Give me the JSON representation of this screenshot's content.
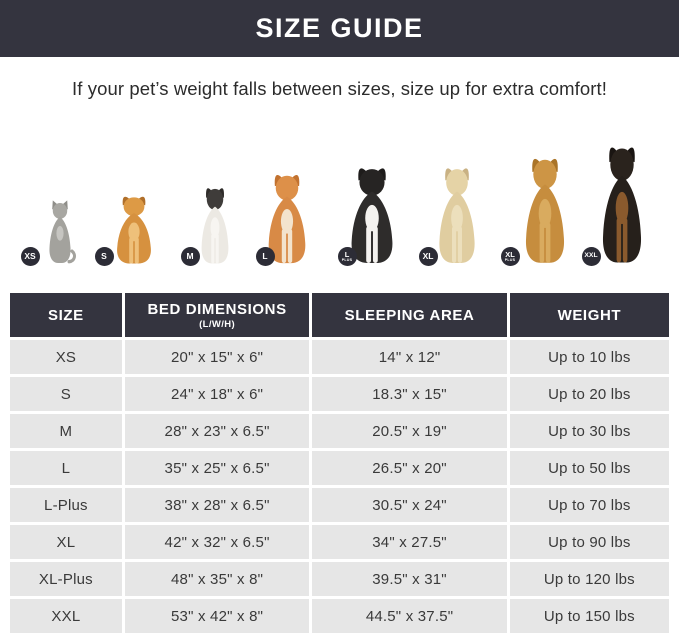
{
  "header": {
    "title": "SIZE GUIDE"
  },
  "subtitle": "If your pet’s weight falls between sizes, size up for extra comfort!",
  "colors": {
    "banner_bg": "#34343f",
    "table_header_bg": "#34343f",
    "row_bg": "#e6e6e6",
    "badge_bg": "#2c2c36",
    "text": "#3a3a3a"
  },
  "animals": [
    {
      "badge": "XS",
      "badge_sub": "",
      "breed": "cat",
      "colors": {
        "body": "#a3a29d",
        "head": "#a8a7a2",
        "ears": "#8f8e89",
        "accent": "#c6c5c1"
      }
    },
    {
      "badge": "S",
      "badge_sub": "",
      "breed": "pomeranian",
      "colors": {
        "body": "#d6913f",
        "head": "#dd9a45",
        "ears": "#b06f2a",
        "accent": "#eec07a"
      }
    },
    {
      "badge": "M",
      "badge_sub": "",
      "breed": "french-bulldog",
      "colors": {
        "body": "#ece9e3",
        "head": "#3f3c3a",
        "ears": "#2f2c2a",
        "accent": "#f7f5f1"
      }
    },
    {
      "badge": "L",
      "badge_sub": "",
      "breed": "shiba-inu",
      "colors": {
        "body": "#d88a46",
        "head": "#dd9049",
        "ears": "#c2722f",
        "accent": "#f3e3cd"
      }
    },
    {
      "badge": "L",
      "badge_sub": "PLUS",
      "breed": "border-collie",
      "colors": {
        "body": "#2e2c2b",
        "head": "#262423",
        "ears": "#1e1c1b",
        "accent": "#f4f2ef"
      }
    },
    {
      "badge": "XL",
      "badge_sub": "",
      "breed": "labrador",
      "colors": {
        "body": "#e0cda0",
        "head": "#e5d3a6",
        "ears": "#c9b183",
        "accent": "#ecdfbc"
      }
    },
    {
      "badge": "XL",
      "badge_sub": "PLUS",
      "breed": "golden-retriever",
      "colors": {
        "body": "#c68d3e",
        "head": "#cd9545",
        "ears": "#aa7428",
        "accent": "#d9ab5f"
      }
    },
    {
      "badge": "XXL",
      "badge_sub": "",
      "breed": "doberman",
      "colors": {
        "body": "#26201b",
        "head": "#2a231d",
        "ears": "#1a1512",
        "accent": "#8a5a2d"
      }
    }
  ],
  "table": {
    "headers": [
      {
        "label": "SIZE",
        "sublabel": ""
      },
      {
        "label": "BED DIMENSIONS",
        "sublabel": "(L/W/H)"
      },
      {
        "label": "SLEEPING AREA",
        "sublabel": ""
      },
      {
        "label": "WEIGHT",
        "sublabel": ""
      }
    ],
    "rows": [
      [
        "XS",
        "20\" x 15\" x 6\"",
        "14\" x 12\"",
        "Up to 10 lbs"
      ],
      [
        "S",
        "24\" x 18\" x 6\"",
        "18.3\" x 15\"",
        "Up to 20 lbs"
      ],
      [
        "M",
        "28\" x 23\" x 6.5\"",
        "20.5\" x 19\"",
        "Up to 30 lbs"
      ],
      [
        "L",
        "35\" x 25\" x 6.5\"",
        "26.5\" x 20\"",
        "Up to 50 lbs"
      ],
      [
        "L-Plus",
        "38\" x 28\" x 6.5\"",
        "30.5\" x 24\"",
        "Up to 70 lbs"
      ],
      [
        "XL",
        "42\" x 32\" x 6.5\"",
        "34\" x 27.5\"",
        "Up to 90 lbs"
      ],
      [
        "XL-Plus",
        "48\" x 35\" x 8\"",
        "39.5\" x 31\"",
        "Up to 120 lbs"
      ],
      [
        "XXL",
        "53\" x 42\" x 8\"",
        "44.5\" x 37.5\"",
        "Up to 150 lbs"
      ]
    ]
  }
}
